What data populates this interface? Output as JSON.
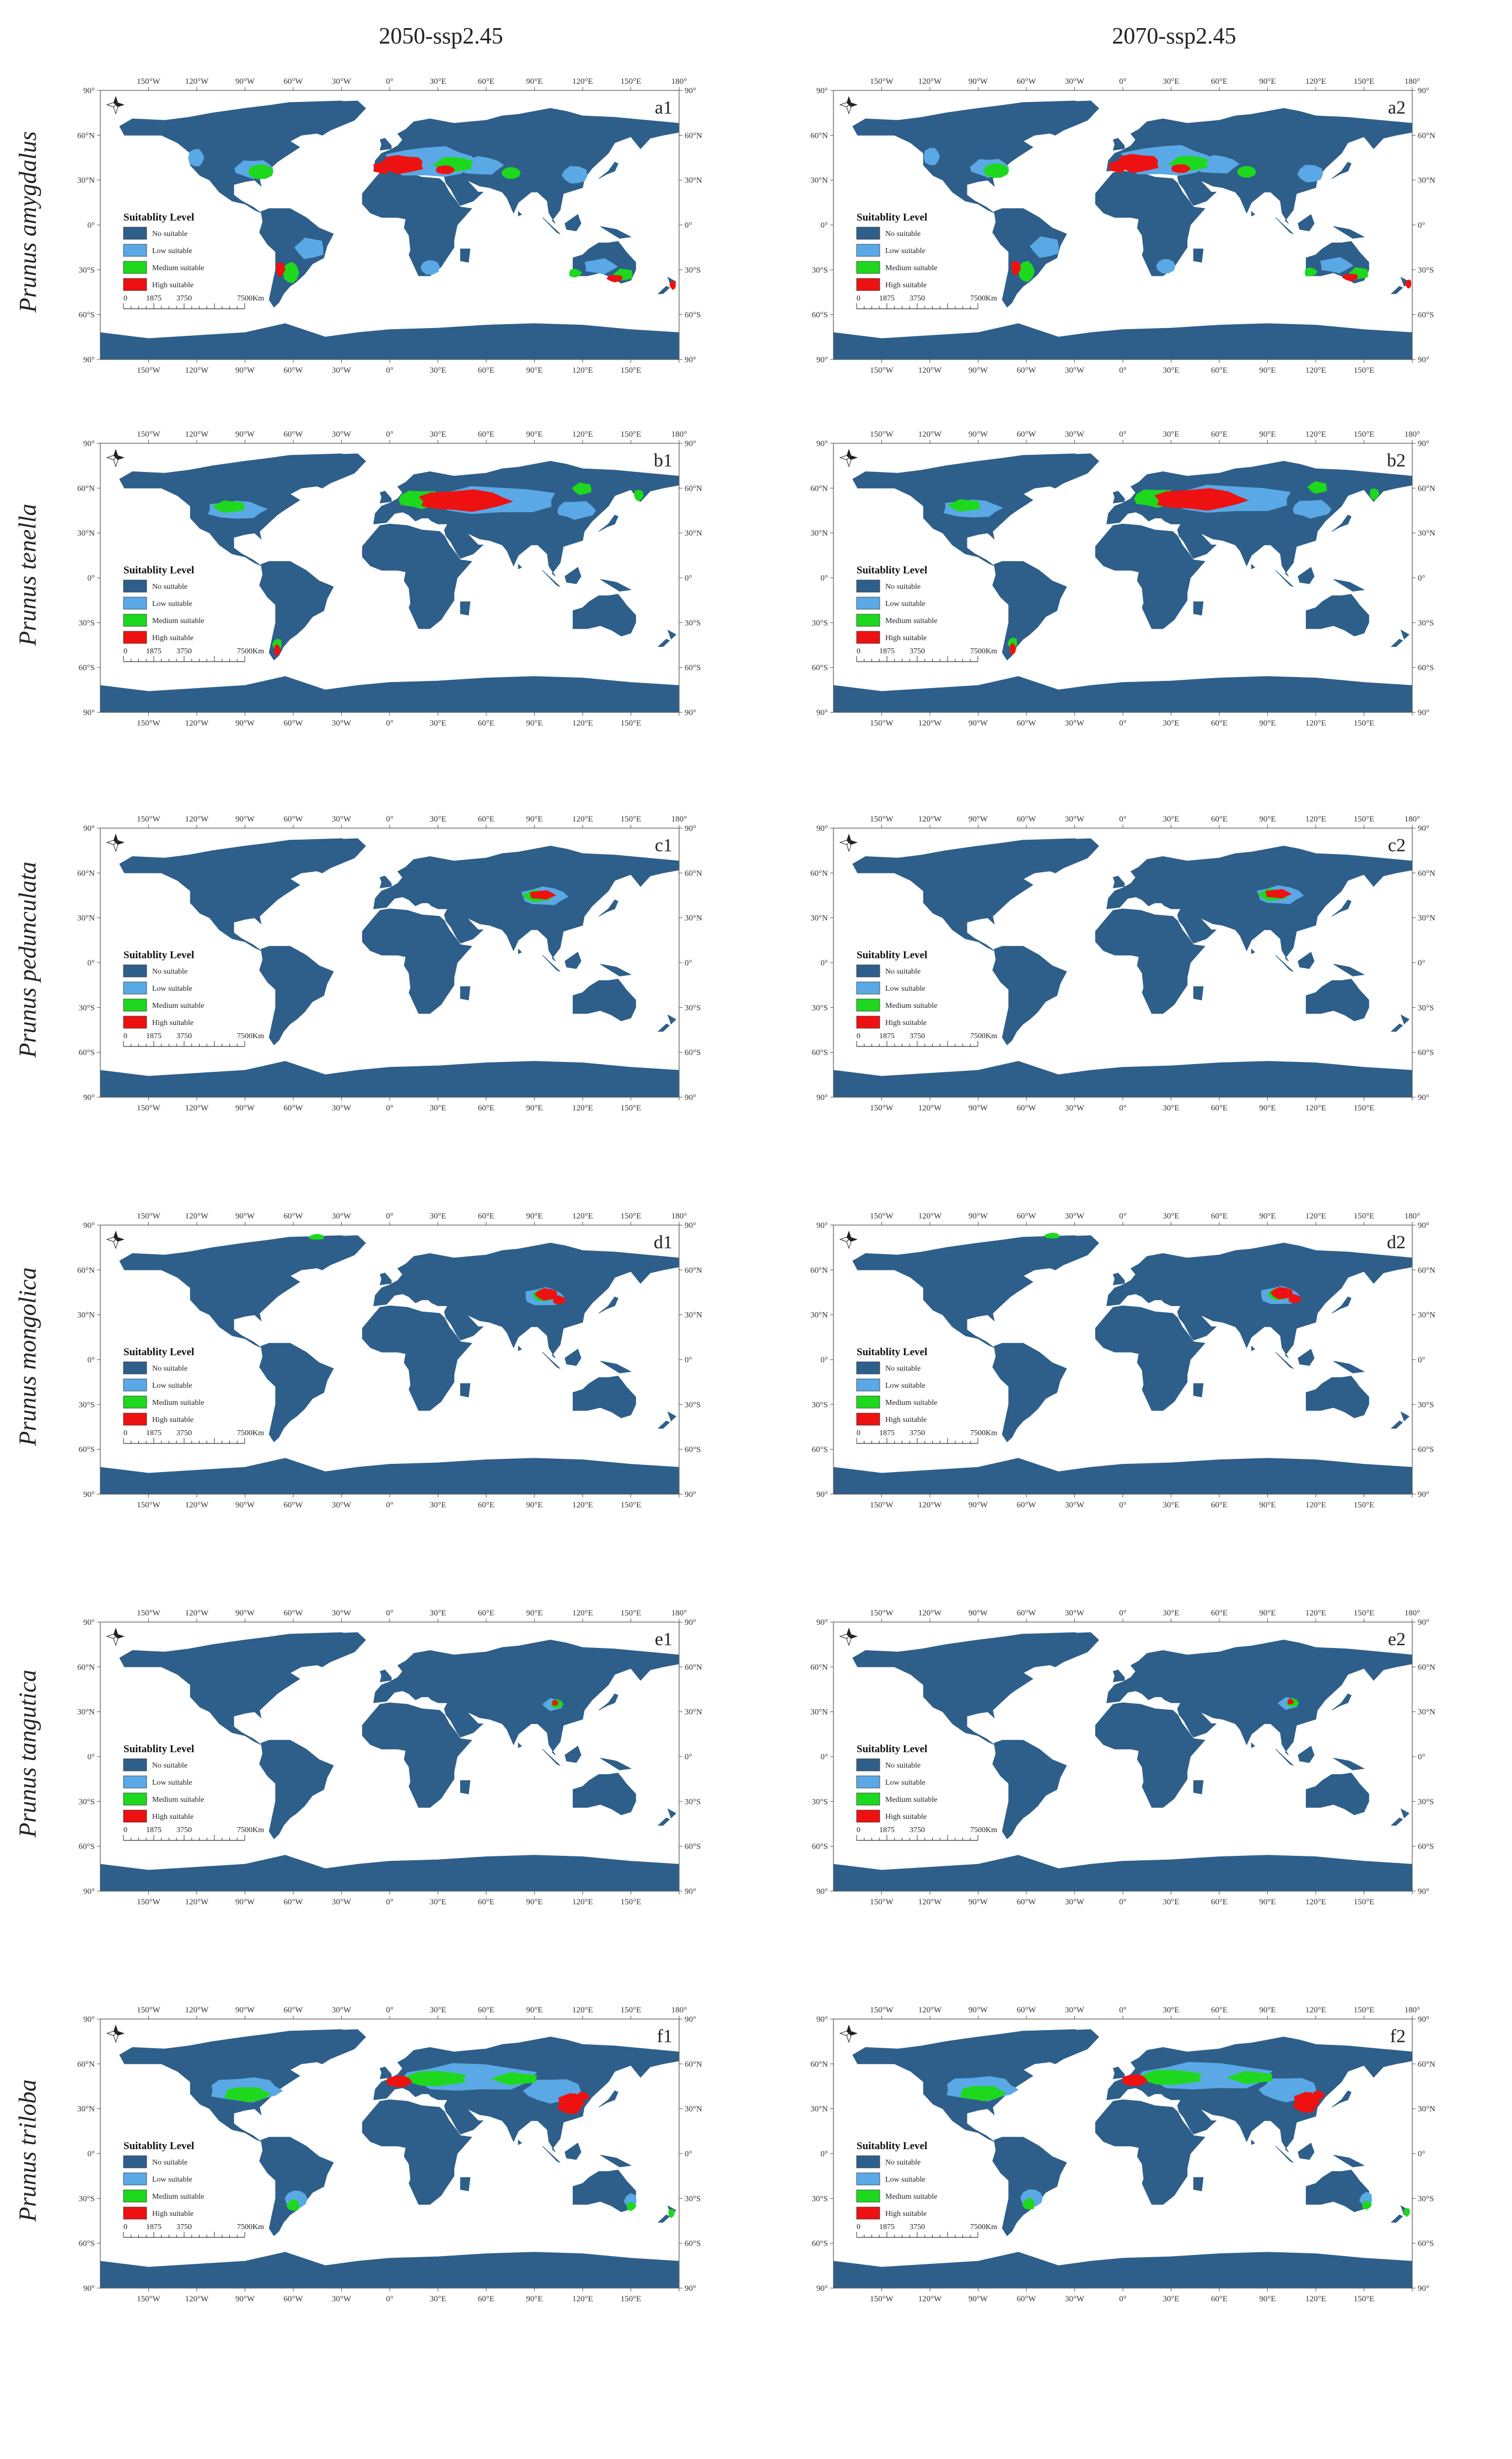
{
  "columns": [
    "2050-ssp2.45",
    "2070-ssp2.45"
  ],
  "rows": [
    {
      "species": "Prunus amygdalus",
      "labels": [
        "a1",
        "a2"
      ]
    },
    {
      "species": "Prunus tenella",
      "labels": [
        "b1",
        "b2"
      ]
    },
    {
      "species": "Prunus pedunculata",
      "labels": [
        "c1",
        "c2"
      ]
    },
    {
      "species": "Prunus mongolica",
      "labels": [
        "d1",
        "d2"
      ]
    },
    {
      "species": "Prunus tangutica",
      "labels": [
        "e1",
        "e2"
      ]
    },
    {
      "species": "Prunus triloba",
      "labels": [
        "f1",
        "f2"
      ]
    }
  ],
  "lon_ticks": [
    "150°W",
    "120°W",
    "90°W",
    "60°W",
    "30°W",
    "0°",
    "30°E",
    "60°E",
    "90°E",
    "120°E",
    "150°E",
    "180°"
  ],
  "lat_ticks": [
    "90°",
    "60°N",
    "30°N",
    "0°",
    "30°S",
    "60°S",
    "90°"
  ],
  "legend": {
    "title": "Suitablity Level",
    "items": [
      {
        "label": "No suitable",
        "color": "#2e5f8a"
      },
      {
        "label": "Low suitable",
        "color": "#5aa9e6"
      },
      {
        "label": "Medium suitable",
        "color": "#1ed81e"
      },
      {
        "label": "High suitable",
        "color": "#ee1111"
      }
    ]
  },
  "scale_bar": {
    "ticks": [
      "0",
      "1875",
      "3750",
      "7500"
    ],
    "unit": "Km"
  },
  "icons": {
    "north_arrow": "compass-rose-icon"
  },
  "colors": {
    "land": "#2e5f8a",
    "ocean": "#ffffff"
  }
}
